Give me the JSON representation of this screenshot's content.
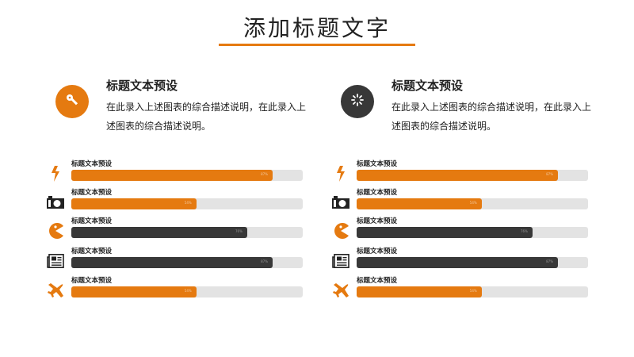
{
  "title": "添加标题文字",
  "colors": {
    "accent": "#e57a10",
    "dark": "#383838",
    "track": "#e3e3e3"
  },
  "panels": [
    {
      "heading": "标题文本预设",
      "description": "在此录入上述图表的综合描述说明，在此录入上述图表的综合描述说明。",
      "icon": "key-icon",
      "circle_color": "#e57a10",
      "bars": [
        {
          "label": "标题文本预设",
          "icon": "lightning-icon",
          "value": 87,
          "pct": "87%",
          "color": "orange"
        },
        {
          "label": "标题文本预设",
          "icon": "camera-icon",
          "value": 54,
          "pct": "54%",
          "color": "orange"
        },
        {
          "label": "标题文本预设",
          "icon": "pacman-icon",
          "value": 76,
          "pct": "76%",
          "color": "dark"
        },
        {
          "label": "标题文本预设",
          "icon": "newspaper-icon",
          "value": 87,
          "pct": "87%",
          "color": "dark"
        },
        {
          "label": "标题文本预设",
          "icon": "airplane-icon",
          "value": 54,
          "pct": "54%",
          "color": "orange"
        }
      ]
    },
    {
      "heading": "标题文本预设",
      "description": "在此录入上述图表的综合描述说明，在此录入上述图表的综合描述说明。",
      "icon": "loading-spinner-icon",
      "circle_color": "#383838",
      "bars": [
        {
          "label": "标题文本预设",
          "icon": "lightning-icon",
          "value": 87,
          "pct": "87%",
          "color": "orange"
        },
        {
          "label": "标题文本预设",
          "icon": "camera-icon",
          "value": 54,
          "pct": "54%",
          "color": "orange"
        },
        {
          "label": "标题文本预设",
          "icon": "pacman-icon",
          "value": 76,
          "pct": "76%",
          "color": "dark"
        },
        {
          "label": "标题文本预设",
          "icon": "newspaper-icon",
          "value": 87,
          "pct": "87%",
          "color": "dark"
        },
        {
          "label": "标题文本预设",
          "icon": "airplane-icon",
          "value": 54,
          "pct": "54%",
          "color": "orange"
        }
      ]
    }
  ]
}
